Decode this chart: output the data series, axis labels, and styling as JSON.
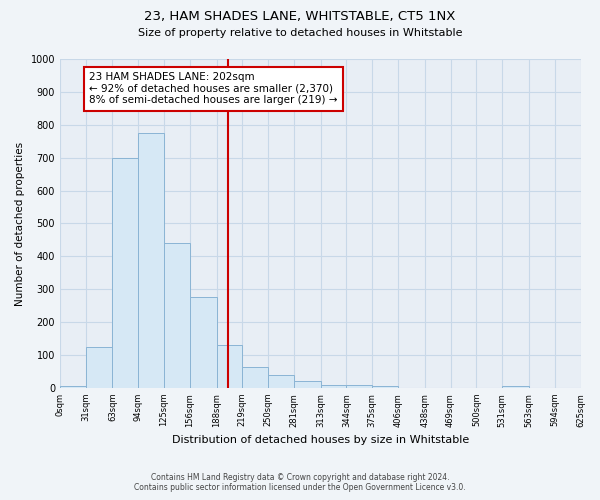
{
  "title": "23, HAM SHADES LANE, WHITSTABLE, CT5 1NX",
  "subtitle": "Size of property relative to detached houses in Whitstable",
  "xlabel": "Distribution of detached houses by size in Whitstable",
  "ylabel": "Number of detached properties",
  "bar_left_edges": [
    0,
    31,
    63,
    94,
    125,
    156,
    188,
    219,
    250,
    281,
    313,
    344,
    375,
    406,
    438,
    469,
    500,
    531,
    563,
    594
  ],
  "bar_widths": [
    31,
    32,
    31,
    31,
    31,
    32,
    31,
    31,
    31,
    32,
    31,
    31,
    31,
    32,
    31,
    31,
    31,
    32,
    31,
    31
  ],
  "bar_heights": [
    5,
    125,
    700,
    775,
    440,
    275,
    130,
    65,
    40,
    20,
    10,
    10,
    5,
    0,
    0,
    0,
    0,
    5,
    0,
    0
  ],
  "bar_color": "#d6e8f5",
  "bar_edge_color": "#8ab4d4",
  "tick_labels": [
    "0sqm",
    "31sqm",
    "63sqm",
    "94sqm",
    "125sqm",
    "156sqm",
    "188sqm",
    "219sqm",
    "250sqm",
    "281sqm",
    "313sqm",
    "344sqm",
    "375sqm",
    "406sqm",
    "438sqm",
    "469sqm",
    "500sqm",
    "531sqm",
    "563sqm",
    "594sqm",
    "625sqm"
  ],
  "vline_x": 202,
  "vline_color": "#cc0000",
  "ylim": [
    0,
    1000
  ],
  "xlim": [
    0,
    625
  ],
  "annotation_title": "23 HAM SHADES LANE: 202sqm",
  "annotation_line1": "← 92% of detached houses are smaller (2,370)",
  "annotation_line2": "8% of semi-detached houses are larger (219) →",
  "footnote1": "Contains HM Land Registry data © Crown copyright and database right 2024.",
  "footnote2": "Contains public sector information licensed under the Open Government Licence v3.0.",
  "background_color": "#f0f4f8",
  "plot_bg_color": "#e8eef5",
  "grid_color": "#c8d8e8"
}
